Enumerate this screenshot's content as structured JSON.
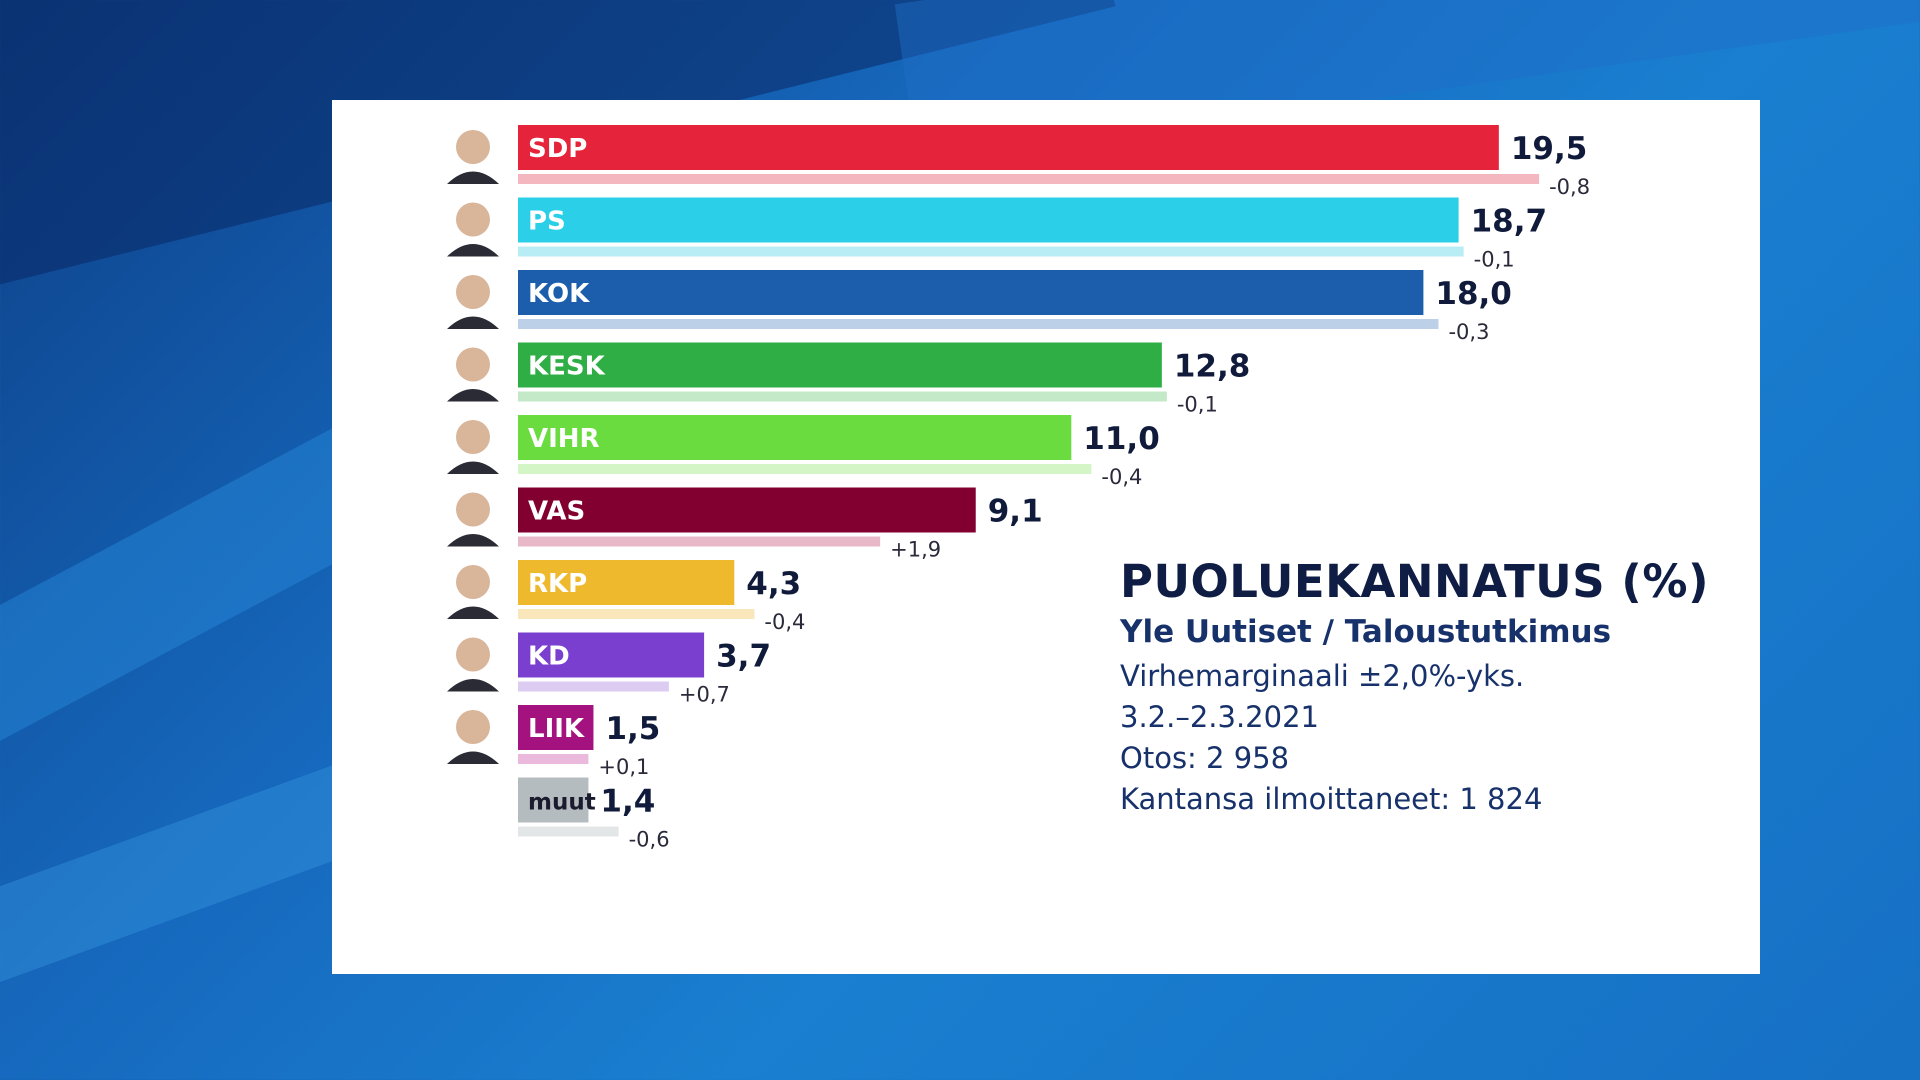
{
  "chart_data": {
    "type": "bar",
    "title": "PUOLUEKANNATUS (%)",
    "categories": [
      "SDP",
      "PS",
      "KOK",
      "KESK",
      "VIHR",
      "VAS",
      "RKP",
      "KD",
      "LIIK",
      "muut"
    ],
    "values": [
      19.5,
      18.7,
      18.0,
      12.8,
      11.0,
      9.1,
      4.3,
      3.7,
      1.5,
      1.4
    ],
    "value_labels": [
      "19,5",
      "18,7",
      "18,0",
      "12,8",
      "11,0",
      "9,1",
      "4,3",
      "3,7",
      "1,5",
      "1,4"
    ],
    "previous_values": [
      20.3,
      18.8,
      18.3,
      12.9,
      11.4,
      7.2,
      4.7,
      3.0,
      1.4,
      2.0
    ],
    "changes": [
      "-0,8",
      "-0,1",
      "-0,3",
      "-0,1",
      "-0,4",
      "+1,9",
      "-0,4",
      "+0,7",
      "+0,1",
      "-0,6"
    ],
    "colors": [
      "#e5233a",
      "#2ccfe8",
      "#1c5eac",
      "#2eae44",
      "#6bdc3f",
      "#820030",
      "#efb92e",
      "#7a3fcf",
      "#a3127e",
      "#b4bcbf"
    ],
    "previous_colors": [
      "#f4b7c0",
      "#b9edf5",
      "#bcd0e8",
      "#c3e9c8",
      "#d4f5c5",
      "#e8b8c8",
      "#f9e6bb",
      "#ddccf2",
      "#ebb9dc",
      "#e3e6e7"
    ],
    "dark_label_categories": [
      "muut"
    ],
    "ylim": [
      0,
      22
    ],
    "grid": false,
    "legend": "none"
  },
  "info": {
    "title": "PUOLUEKANNATUS (%)",
    "source": "Yle Uutiset / Taloustutkimus",
    "margin": "Virhemarginaali ±2,0%-yks.",
    "period": "3.2.–2.3.2021",
    "sample": "Otos: 2 958",
    "respondents": "Kantansa ilmoittaneet: 1 824"
  },
  "portraits": [
    "SDP",
    "PS",
    "KOK",
    "KESK",
    "VIHR",
    "VAS",
    "RKP",
    "KD",
    "LIIK"
  ]
}
